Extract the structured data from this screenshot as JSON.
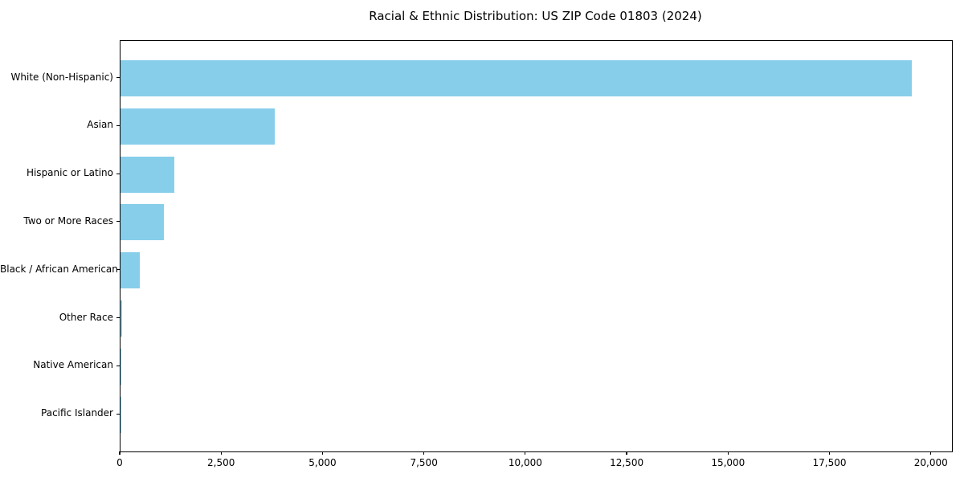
{
  "chart_data": {
    "type": "bar",
    "orientation": "horizontal",
    "title": "Racial & Ethnic Distribution: US ZIP Code 01803 (2024)",
    "categories": [
      "White (Non-Hispanic)",
      "Asian",
      "Hispanic or Latino",
      "Two or More Races",
      "Black / African American",
      "Other Race",
      "Native American",
      "Pacific Islander"
    ],
    "values": [
      19500,
      3800,
      1330,
      1070,
      480,
      35,
      12,
      5
    ],
    "xlabel": "",
    "ylabel": "",
    "xlim": [
      0,
      20500
    ],
    "xticks": [
      0,
      2500,
      5000,
      7500,
      10000,
      12500,
      15000,
      17500,
      20000
    ],
    "xtick_labels": [
      "0",
      "2,500",
      "5,000",
      "7,500",
      "10,000",
      "12,500",
      "15,000",
      "17,500",
      "20,000"
    ],
    "bar_color": "#87CEEB",
    "axis_color": "#000000",
    "background_color": "#ffffff",
    "grid": false,
    "legend": "none",
    "value_labels": "none"
  }
}
